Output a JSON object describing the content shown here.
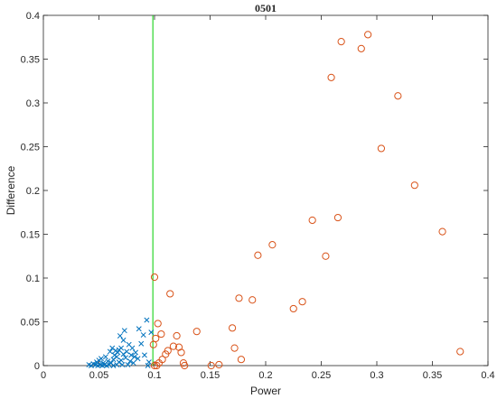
{
  "chart_data": {
    "type": "scatter",
    "title": "0501",
    "xlabel": "Power",
    "ylabel": "Difference",
    "xlim": [
      0,
      0.4
    ],
    "ylim": [
      0,
      0.4
    ],
    "xticks": [
      "0",
      "0.05",
      "0.1",
      "0.15",
      "0.2",
      "0.25",
      "0.3",
      "0.35",
      "0.4"
    ],
    "yticks": [
      "0",
      "0.05",
      "0.1",
      "0.15",
      "0.2",
      "0.25",
      "0.3",
      "0.35",
      "0.4"
    ],
    "grid": false,
    "legend": "none",
    "threshold_x": 0.0985,
    "colors": {
      "cross": "#0072BD",
      "circle": "#D95319",
      "threshold": "#00CC00"
    },
    "series": [
      {
        "marker": "x",
        "color": "#0072BD",
        "points": [
          [
            0.041,
            0.001
          ],
          [
            0.043,
            0.0
          ],
          [
            0.045,
            0.002
          ],
          [
            0.047,
            0.001
          ],
          [
            0.048,
            0.004
          ],
          [
            0.049,
            0.0
          ],
          [
            0.05,
            0.006
          ],
          [
            0.051,
            0.001
          ],
          [
            0.052,
            0.008
          ],
          [
            0.053,
            0.0
          ],
          [
            0.054,
            0.003
          ],
          [
            0.055,
            0.001
          ],
          [
            0.056,
            0.01
          ],
          [
            0.057,
            0.0
          ],
          [
            0.058,
            0.005
          ],
          [
            0.059,
            0.001
          ],
          [
            0.06,
            0.016
          ],
          [
            0.061,
            0.003
          ],
          [
            0.062,
            0.02
          ],
          [
            0.063,
            0.007
          ],
          [
            0.063,
            0.0
          ],
          [
            0.064,
            0.012
          ],
          [
            0.065,
            0.017
          ],
          [
            0.066,
            0.001
          ],
          [
            0.066,
            0.01
          ],
          [
            0.067,
            0.015
          ],
          [
            0.068,
            0.004
          ],
          [
            0.068,
            0.018
          ],
          [
            0.069,
            0.034
          ],
          [
            0.07,
            0.006
          ],
          [
            0.07,
            0.02
          ],
          [
            0.071,
            0.001
          ],
          [
            0.072,
            0.013
          ],
          [
            0.072,
            0.029
          ],
          [
            0.073,
            0.04
          ],
          [
            0.074,
            0.009
          ],
          [
            0.075,
            0.016
          ],
          [
            0.076,
            0.001
          ],
          [
            0.077,
            0.024
          ],
          [
            0.078,
            0.005
          ],
          [
            0.079,
            0.012
          ],
          [
            0.08,
            0.02
          ],
          [
            0.081,
            0.003
          ],
          [
            0.082,
            0.01
          ],
          [
            0.083,
            0.015
          ],
          [
            0.085,
            0.008
          ],
          [
            0.086,
            0.042
          ],
          [
            0.088,
            0.025
          ],
          [
            0.09,
            0.035
          ],
          [
            0.091,
            0.012
          ],
          [
            0.093,
            0.052
          ],
          [
            0.094,
            0.0
          ],
          [
            0.095,
            0.004
          ],
          [
            0.097,
            0.038
          ]
        ]
      },
      {
        "marker": "o",
        "color": "#D95319",
        "points": [
          [
            0.1,
            0.101
          ],
          [
            0.099,
            0.024
          ],
          [
            0.1,
            0.0
          ],
          [
            0.101,
            0.031
          ],
          [
            0.102,
            0.0
          ],
          [
            0.103,
            0.048
          ],
          [
            0.104,
            0.003
          ],
          [
            0.106,
            0.036
          ],
          [
            0.107,
            0.007
          ],
          [
            0.11,
            0.013
          ],
          [
            0.112,
            0.017
          ],
          [
            0.114,
            0.082
          ],
          [
            0.117,
            0.022
          ],
          [
            0.12,
            0.034
          ],
          [
            0.122,
            0.021
          ],
          [
            0.124,
            0.015
          ],
          [
            0.126,
            0.003
          ],
          [
            0.127,
            0.0
          ],
          [
            0.138,
            0.039
          ],
          [
            0.151,
            0.0
          ],
          [
            0.158,
            0.001
          ],
          [
            0.17,
            0.043
          ],
          [
            0.172,
            0.02
          ],
          [
            0.176,
            0.077
          ],
          [
            0.178,
            0.007
          ],
          [
            0.188,
            0.075
          ],
          [
            0.193,
            0.126
          ],
          [
            0.206,
            0.138
          ],
          [
            0.225,
            0.065
          ],
          [
            0.233,
            0.073
          ],
          [
            0.242,
            0.166
          ],
          [
            0.254,
            0.125
          ],
          [
            0.259,
            0.329
          ],
          [
            0.265,
            0.169
          ],
          [
            0.268,
            0.37
          ],
          [
            0.286,
            0.362
          ],
          [
            0.292,
            0.378
          ],
          [
            0.304,
            0.248
          ],
          [
            0.319,
            0.308
          ],
          [
            0.334,
            0.206
          ],
          [
            0.359,
            0.153
          ],
          [
            0.375,
            0.016
          ]
        ]
      }
    ]
  }
}
